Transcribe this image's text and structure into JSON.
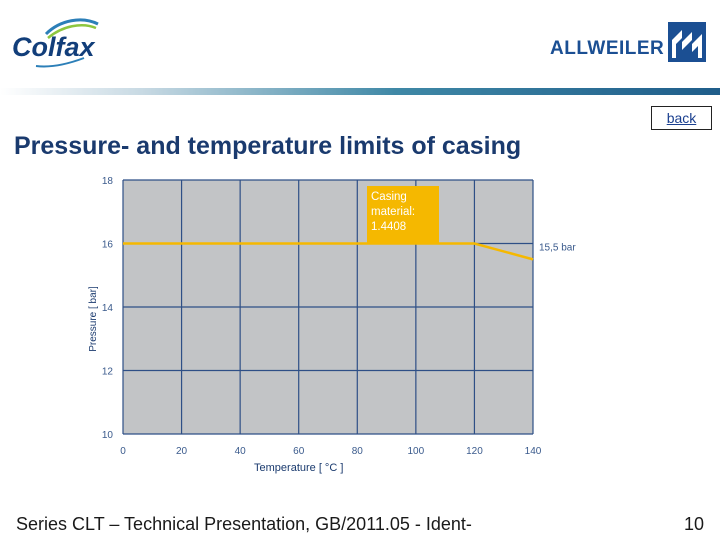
{
  "logos": {
    "left": "Colfax",
    "right": "ALLWEILER"
  },
  "header": {
    "back_label": "back",
    "title": "Pressure- and temperature limits of casing"
  },
  "chart_data": {
    "type": "line",
    "title": "",
    "xlabel": "Temperature [ °C ]",
    "ylabel": "Pressure [ bar]",
    "xlim": [
      0,
      140
    ],
    "ylim": [
      10,
      18
    ],
    "xticks": [
      0,
      20,
      40,
      60,
      80,
      100,
      120,
      140
    ],
    "yticks": [
      10,
      12,
      14,
      16,
      18
    ],
    "grid": true,
    "series": [
      {
        "x": [
          0,
          120,
          140
        ],
        "y": [
          16,
          16,
          15.5
        ],
        "color": "#f5b800"
      }
    ],
    "annotations": [
      {
        "text": "Casing material: 1.4408",
        "lines": [
          "Casing",
          "material:",
          "1.4408"
        ]
      },
      {
        "text": "15,5 bar"
      }
    ],
    "plot_background": "#c2c4c6",
    "grid_color": "#2e4f86"
  },
  "footer": {
    "text": "Series CLT – Technical Presentation, GB/2011.05 - Ident-",
    "page": "10"
  }
}
